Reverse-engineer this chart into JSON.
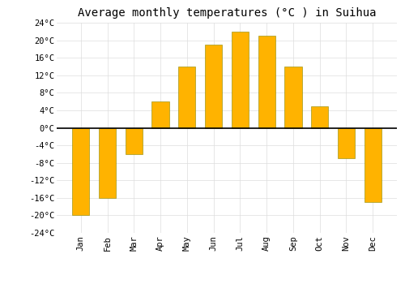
{
  "title": "Average monthly temperatures (°C ) in Suihua",
  "months": [
    "Jan",
    "Feb",
    "Mar",
    "Apr",
    "May",
    "Jun",
    "Jul",
    "Aug",
    "Sep",
    "Oct",
    "Nov",
    "Dec"
  ],
  "values": [
    -20,
    -16,
    -6,
    6,
    14,
    19,
    22,
    21,
    14,
    5,
    -7,
    -17
  ],
  "bar_color_top": "#FFB300",
  "bar_color_bottom": "#FF9800",
  "bar_edge_color": "#888800",
  "ylim": [
    -24,
    24
  ],
  "yticks": [
    -24,
    -20,
    -16,
    -12,
    -8,
    -4,
    0,
    4,
    8,
    12,
    16,
    20,
    24
  ],
  "background_color": "#ffffff",
  "plot_bg_color": "#ffffff",
  "grid_color": "#dddddd",
  "title_fontsize": 10,
  "tick_fontsize": 7.5,
  "bar_width": 0.65
}
